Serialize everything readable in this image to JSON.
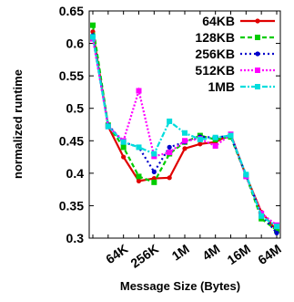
{
  "chart_data": {
    "type": "line",
    "xlabel": "Message Size (Bytes)",
    "ylabel": "normalized runtime",
    "ylim": [
      0.3,
      0.65
    ],
    "yticks": [
      "0.3",
      "0.35",
      "0.4",
      "0.45",
      "0.5",
      "0.55",
      "0.6",
      "0.65"
    ],
    "x_tick_labels": [
      "64K",
      "256K",
      "1M",
      "4M",
      "16M",
      "64M"
    ],
    "x": [
      "16K",
      "32K",
      "64K",
      "128K",
      "256K",
      "512K",
      "1M",
      "2M",
      "4M",
      "8M",
      "16M",
      "32M",
      "64M"
    ],
    "legend_position": "top-right",
    "grid": false,
    "series": [
      {
        "name": "64KB",
        "color": "#e00000",
        "marker": "circle",
        "dash": "",
        "values": [
          0.618,
          0.472,
          0.425,
          0.388,
          0.392,
          0.393,
          0.438,
          0.445,
          0.448,
          0.46,
          0.396,
          0.34,
          0.312
        ]
      },
      {
        "name": "128KB",
        "color": "#00cc00",
        "marker": "square",
        "dash": "5,3",
        "values": [
          0.628,
          0.474,
          0.44,
          0.395,
          0.386,
          0.43,
          0.448,
          0.458,
          0.452,
          0.456,
          0.396,
          0.33,
          0.312
        ]
      },
      {
        "name": "256KB",
        "color": "#0000cc",
        "marker": "circle",
        "dash": "2,3",
        "values": [
          0.612,
          0.474,
          0.448,
          0.44,
          0.402,
          0.44,
          0.448,
          0.456,
          0.455,
          0.458,
          0.397,
          0.336,
          0.308
        ]
      },
      {
        "name": "512KB",
        "color": "#ff00ff",
        "marker": "square",
        "dash": "2,2",
        "values": [
          0.607,
          0.472,
          0.45,
          0.527,
          0.426,
          0.432,
          0.45,
          0.453,
          0.442,
          0.46,
          0.395,
          0.338,
          0.32
        ]
      },
      {
        "name": "1MB",
        "color": "#00dddd",
        "marker": "square",
        "dash": "6,2,2,2",
        "values": [
          0.61,
          0.472,
          0.448,
          0.44,
          0.43,
          0.48,
          0.462,
          0.452,
          0.455,
          0.458,
          0.398,
          0.334,
          0.318
        ]
      }
    ]
  }
}
